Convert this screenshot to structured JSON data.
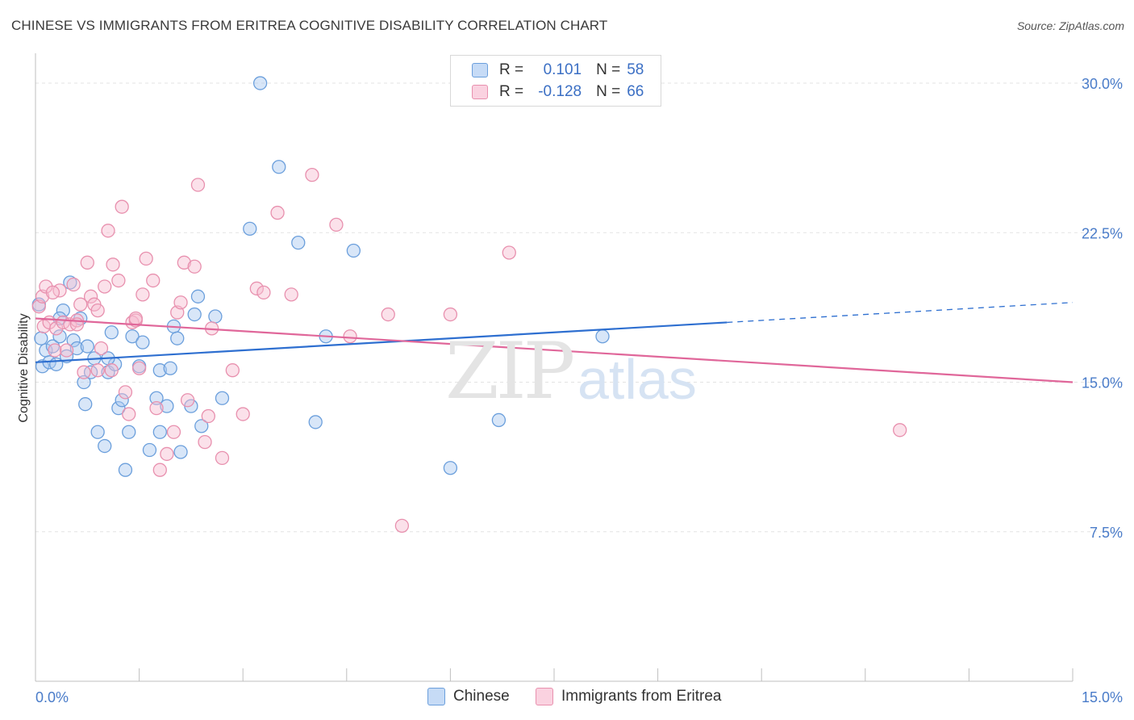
{
  "header": {
    "title": "CHINESE VS IMMIGRANTS FROM ERITREA COGNITIVE DISABILITY CORRELATION CHART",
    "source": "Source: ZipAtlas.com"
  },
  "watermark": {
    "zip": "ZIP",
    "atlas": "atlas"
  },
  "legend": {
    "rows": [
      {
        "r_label": "R =",
        "r_value": "0.101",
        "n_label": "N =",
        "n_value": "58",
        "color": "#a8c8f0",
        "border": "#6b9fdc"
      },
      {
        "r_label": "R =",
        "r_value": "-0.128",
        "n_label": "N =",
        "n_value": "66",
        "color": "#f7bcd0",
        "border": "#e890ae"
      }
    ]
  },
  "bottom_legend": {
    "items": [
      {
        "label": "Chinese",
        "color": "#a8c8f0",
        "border": "#6b9fdc"
      },
      {
        "label": "Immigrants from Eritrea",
        "color": "#f7bcd0",
        "border": "#e890ae"
      }
    ]
  },
  "chart_data": {
    "type": "scatter",
    "title": "CHINESE VS IMMIGRANTS FROM ERITREA COGNITIVE DISABILITY CORRELATION CHART",
    "xlabel": "",
    "ylabel": "Cognitive Disability",
    "xlim": [
      0,
      15
    ],
    "ylim": [
      0,
      31.5
    ],
    "x_tick_labels": [
      "0.0%",
      "15.0%"
    ],
    "y_ticks": [
      7.5,
      15.0,
      22.5,
      30.0
    ],
    "y_tick_labels": [
      "7.5%",
      "15.0%",
      "22.5%",
      "30.0%"
    ],
    "grid": true,
    "series": [
      {
        "name": "Chinese",
        "color": "#6b9fdc",
        "fill": "#a8c8f0",
        "line_color": "#2e6fd0",
        "trend": {
          "x0": 0.0,
          "y0": 16.0,
          "x1": 10.0,
          "y1": 18.0,
          "dash_x1": 15.0,
          "dash_y1": 19.0
        },
        "points": [
          [
            0.05,
            18.9
          ],
          [
            0.08,
            17.2
          ],
          [
            0.1,
            15.8
          ],
          [
            0.15,
            16.6
          ],
          [
            0.2,
            16.0
          ],
          [
            0.25,
            16.8
          ],
          [
            0.3,
            15.9
          ],
          [
            0.35,
            17.3
          ],
          [
            0.4,
            18.6
          ],
          [
            0.45,
            16.3
          ],
          [
            0.5,
            20.0
          ],
          [
            0.55,
            17.1
          ],
          [
            0.6,
            16.7
          ],
          [
            0.7,
            15.0
          ],
          [
            0.72,
            13.9
          ],
          [
            0.75,
            16.8
          ],
          [
            0.8,
            15.5
          ],
          [
            0.85,
            16.2
          ],
          [
            0.9,
            12.5
          ],
          [
            1.0,
            11.8
          ],
          [
            1.05,
            15.5
          ],
          [
            1.1,
            17.5
          ],
          [
            1.15,
            15.9
          ],
          [
            1.2,
            13.7
          ],
          [
            1.25,
            14.1
          ],
          [
            1.3,
            10.6
          ],
          [
            1.35,
            12.5
          ],
          [
            1.4,
            17.3
          ],
          [
            1.5,
            15.8
          ],
          [
            1.55,
            17.0
          ],
          [
            1.65,
            11.6
          ],
          [
            1.75,
            14.2
          ],
          [
            1.8,
            12.5
          ],
          [
            1.8,
            15.6
          ],
          [
            1.9,
            13.8
          ],
          [
            1.95,
            15.7
          ],
          [
            2.0,
            17.8
          ],
          [
            2.05,
            17.2
          ],
          [
            2.1,
            11.5
          ],
          [
            2.25,
            13.8
          ],
          [
            2.3,
            18.4
          ],
          [
            2.35,
            19.3
          ],
          [
            2.4,
            12.8
          ],
          [
            2.6,
            18.3
          ],
          [
            2.7,
            14.2
          ],
          [
            3.1,
            22.7
          ],
          [
            3.25,
            30.0
          ],
          [
            3.8,
            22.0
          ],
          [
            3.52,
            25.8
          ],
          [
            4.05,
            13.0
          ],
          [
            4.2,
            17.3
          ],
          [
            4.6,
            21.6
          ],
          [
            6.0,
            10.7
          ],
          [
            6.7,
            13.1
          ],
          [
            8.2,
            17.3
          ],
          [
            0.35,
            18.2
          ],
          [
            0.65,
            18.2
          ],
          [
            1.05,
            16.2
          ]
        ]
      },
      {
        "name": "Immigrants from Eritrea",
        "color": "#e890ae",
        "fill": "#f7bcd0",
        "line_color": "#e0679a",
        "trend": {
          "x0": 0.0,
          "y0": 18.2,
          "x1": 15.0,
          "y1": 15.0
        },
        "points": [
          [
            0.05,
            18.8
          ],
          [
            0.1,
            19.3
          ],
          [
            0.12,
            17.8
          ],
          [
            0.15,
            19.8
          ],
          [
            0.2,
            18.0
          ],
          [
            0.28,
            16.6
          ],
          [
            0.3,
            17.7
          ],
          [
            0.35,
            19.6
          ],
          [
            0.4,
            18.0
          ],
          [
            0.45,
            16.6
          ],
          [
            0.5,
            17.9
          ],
          [
            0.55,
            19.9
          ],
          [
            0.6,
            18.1
          ],
          [
            0.65,
            18.9
          ],
          [
            0.7,
            15.5
          ],
          [
            0.75,
            21.0
          ],
          [
            0.8,
            19.3
          ],
          [
            0.85,
            18.9
          ],
          [
            0.9,
            18.6
          ],
          [
            0.95,
            16.7
          ],
          [
            1.0,
            19.8
          ],
          [
            1.05,
            22.6
          ],
          [
            1.1,
            15.6
          ],
          [
            1.12,
            20.9
          ],
          [
            1.2,
            20.1
          ],
          [
            1.25,
            23.8
          ],
          [
            1.3,
            14.5
          ],
          [
            1.35,
            13.4
          ],
          [
            1.4,
            18.0
          ],
          [
            1.45,
            18.1
          ],
          [
            1.5,
            15.7
          ],
          [
            1.55,
            19.4
          ],
          [
            1.6,
            21.2
          ],
          [
            1.7,
            20.1
          ],
          [
            1.75,
            13.7
          ],
          [
            1.8,
            10.6
          ],
          [
            1.9,
            11.4
          ],
          [
            2.0,
            12.5
          ],
          [
            2.05,
            18.5
          ],
          [
            2.1,
            19.0
          ],
          [
            2.15,
            21.0
          ],
          [
            2.2,
            14.1
          ],
          [
            2.3,
            20.8
          ],
          [
            2.35,
            24.9
          ],
          [
            2.45,
            12.0
          ],
          [
            2.5,
            13.3
          ],
          [
            2.55,
            17.7
          ],
          [
            2.7,
            11.2
          ],
          [
            2.85,
            15.6
          ],
          [
            3.0,
            13.4
          ],
          [
            3.2,
            19.7
          ],
          [
            3.3,
            19.5
          ],
          [
            3.5,
            23.5
          ],
          [
            3.7,
            19.4
          ],
          [
            4.0,
            25.4
          ],
          [
            4.35,
            22.9
          ],
          [
            4.55,
            17.3
          ],
          [
            5.1,
            18.4
          ],
          [
            5.3,
            7.8
          ],
          [
            6.0,
            18.4
          ],
          [
            6.85,
            21.5
          ],
          [
            12.5,
            12.6
          ],
          [
            0.25,
            19.5
          ],
          [
            0.6,
            17.9
          ],
          [
            1.45,
            18.2
          ],
          [
            0.9,
            15.6
          ]
        ]
      }
    ]
  }
}
